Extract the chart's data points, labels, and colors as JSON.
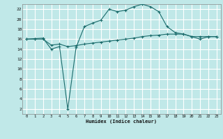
{
  "xlabel": "Humidex (Indice chaleur)",
  "bg_color": "#c0e8e8",
  "grid_color": "#ffffff",
  "line_color": "#1a6b6b",
  "x_ticks": [
    0,
    1,
    2,
    3,
    4,
    5,
    6,
    7,
    8,
    9,
    10,
    11,
    12,
    13,
    14,
    15,
    16,
    17,
    18,
    19,
    20,
    21,
    22,
    23
  ],
  "y_ticks": [
    2,
    4,
    6,
    8,
    10,
    12,
    14,
    16,
    18,
    20,
    22
  ],
  "ylim": [
    1.0,
    23.0
  ],
  "xlim": [
    -0.5,
    23.5
  ],
  "line1_x": [
    0,
    1,
    2,
    3,
    4,
    5,
    6,
    7,
    8,
    9,
    10,
    11,
    12,
    13,
    14,
    15,
    16,
    17,
    18,
    19,
    20,
    21,
    22,
    23
  ],
  "line1_y": [
    16.0,
    16.1,
    16.2,
    14.0,
    14.5,
    2.0,
    14.3,
    18.5,
    19.2,
    19.8,
    22.0,
    21.5,
    21.8,
    22.5,
    23.0,
    22.5,
    21.5,
    18.5,
    17.3,
    17.0,
    16.5,
    16.0,
    16.5,
    16.5
  ],
  "line2_x": [
    0,
    1,
    2,
    3,
    4,
    5,
    6,
    7,
    8,
    9,
    10,
    11,
    12,
    13,
    14,
    15,
    16,
    17,
    18,
    19,
    20,
    21,
    22,
    23
  ],
  "line2_y": [
    16.0,
    16.0,
    16.0,
    14.8,
    15.0,
    14.5,
    14.7,
    15.0,
    15.2,
    15.4,
    15.6,
    15.8,
    16.0,
    16.2,
    16.5,
    16.7,
    16.8,
    17.0,
    17.0,
    17.0,
    16.5,
    16.5,
    16.5,
    16.5
  ]
}
